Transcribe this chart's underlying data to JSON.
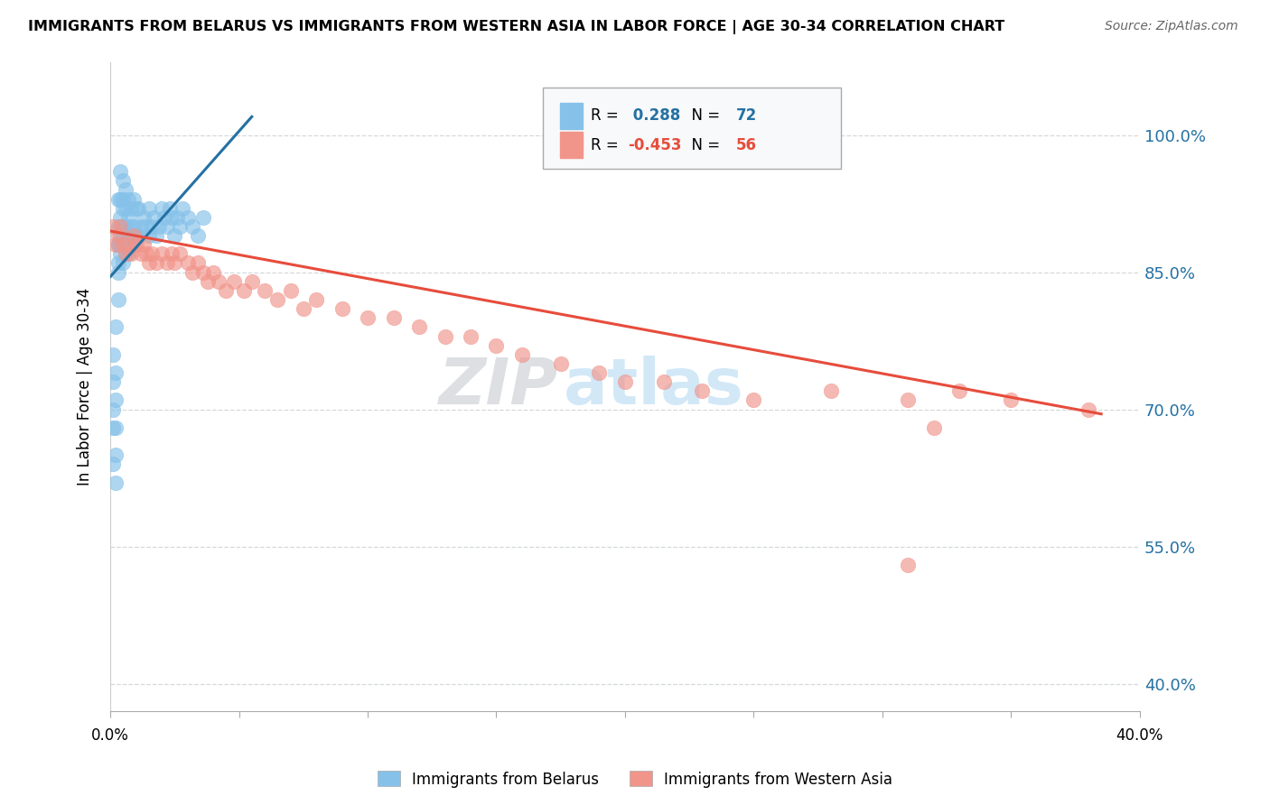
{
  "title": "IMMIGRANTS FROM BELARUS VS IMMIGRANTS FROM WESTERN ASIA IN LABOR FORCE | AGE 30-34 CORRELATION CHART",
  "source": "Source: ZipAtlas.com",
  "ylabel": "In Labor Force | Age 30-34",
  "legend_label1": "Immigrants from Belarus",
  "legend_label2": "Immigrants from Western Asia",
  "R1": 0.288,
  "N1": 72,
  "R2": -0.453,
  "N2": 56,
  "color1": "#85c1e9",
  "color2": "#f1948a",
  "trendline1_color": "#2471a3",
  "trendline2_color": "#e74c3c",
  "y_ticks": [
    0.4,
    0.55,
    0.7,
    0.85,
    1.0
  ],
  "y_tick_labels": [
    "40.0%",
    "55.0%",
    "70.0%",
    "85.0%",
    "100.0%"
  ],
  "xlim": [
    0.0,
    0.4
  ],
  "ylim": [
    0.37,
    1.08
  ],
  "belarus_x": [
    0.001,
    0.001,
    0.001,
    0.001,
    0.001,
    0.002,
    0.002,
    0.002,
    0.002,
    0.002,
    0.002,
    0.003,
    0.003,
    0.003,
    0.003,
    0.003,
    0.003,
    0.003,
    0.004,
    0.004,
    0.004,
    0.004,
    0.004,
    0.004,
    0.005,
    0.005,
    0.005,
    0.005,
    0.005,
    0.005,
    0.005,
    0.006,
    0.006,
    0.006,
    0.006,
    0.006,
    0.007,
    0.007,
    0.007,
    0.007,
    0.008,
    0.008,
    0.008,
    0.009,
    0.009,
    0.009,
    0.01,
    0.01,
    0.011,
    0.011,
    0.012,
    0.013,
    0.014,
    0.015,
    0.015,
    0.016,
    0.017,
    0.018,
    0.019,
    0.02,
    0.021,
    0.022,
    0.023,
    0.024,
    0.025,
    0.026,
    0.027,
    0.028,
    0.03,
    0.032,
    0.034,
    0.036
  ],
  "belarus_y": [
    0.64,
    0.68,
    0.7,
    0.73,
    0.76,
    0.62,
    0.65,
    0.68,
    0.71,
    0.74,
    0.79,
    0.82,
    0.85,
    0.86,
    0.88,
    0.88,
    0.9,
    0.93,
    0.87,
    0.88,
    0.89,
    0.91,
    0.93,
    0.96,
    0.86,
    0.88,
    0.89,
    0.9,
    0.92,
    0.93,
    0.95,
    0.87,
    0.88,
    0.9,
    0.92,
    0.94,
    0.87,
    0.89,
    0.91,
    0.93,
    0.88,
    0.9,
    0.92,
    0.88,
    0.9,
    0.93,
    0.89,
    0.92,
    0.89,
    0.92,
    0.9,
    0.91,
    0.9,
    0.89,
    0.92,
    0.9,
    0.91,
    0.89,
    0.9,
    0.92,
    0.91,
    0.9,
    0.92,
    0.91,
    0.89,
    0.91,
    0.9,
    0.92,
    0.91,
    0.9,
    0.89,
    0.91
  ],
  "western_x": [
    0.001,
    0.002,
    0.003,
    0.004,
    0.005,
    0.006,
    0.007,
    0.008,
    0.009,
    0.01,
    0.012,
    0.013,
    0.014,
    0.015,
    0.016,
    0.018,
    0.02,
    0.022,
    0.024,
    0.025,
    0.027,
    0.03,
    0.032,
    0.034,
    0.036,
    0.038,
    0.04,
    0.042,
    0.045,
    0.048,
    0.052,
    0.055,
    0.06,
    0.065,
    0.07,
    0.075,
    0.08,
    0.09,
    0.1,
    0.11,
    0.12,
    0.13,
    0.14,
    0.15,
    0.16,
    0.175,
    0.19,
    0.2,
    0.215,
    0.23,
    0.25,
    0.28,
    0.31,
    0.33,
    0.35,
    0.38
  ],
  "western_y": [
    0.9,
    0.88,
    0.89,
    0.9,
    0.88,
    0.87,
    0.88,
    0.87,
    0.89,
    0.88,
    0.87,
    0.88,
    0.87,
    0.86,
    0.87,
    0.86,
    0.87,
    0.86,
    0.87,
    0.86,
    0.87,
    0.86,
    0.85,
    0.86,
    0.85,
    0.84,
    0.85,
    0.84,
    0.83,
    0.84,
    0.83,
    0.84,
    0.83,
    0.82,
    0.83,
    0.81,
    0.82,
    0.81,
    0.8,
    0.8,
    0.79,
    0.78,
    0.78,
    0.77,
    0.76,
    0.75,
    0.74,
    0.73,
    0.73,
    0.72,
    0.71,
    0.72,
    0.71,
    0.72,
    0.71,
    0.7
  ],
  "western_outlier_x": [
    0.32
  ],
  "western_outlier_y": [
    0.68
  ],
  "western_low_x": [
    0.31
  ],
  "western_low_y": [
    0.53
  ],
  "watermark_zip": "ZIP",
  "watermark_atlas": "atlas",
  "background_color": "#ffffff",
  "grid_color": "#d5d8dc",
  "legend_box_color": "#f8f9fa",
  "legend_box_edge": "#aaaaaa",
  "right_tick_color": "#2471a3"
}
